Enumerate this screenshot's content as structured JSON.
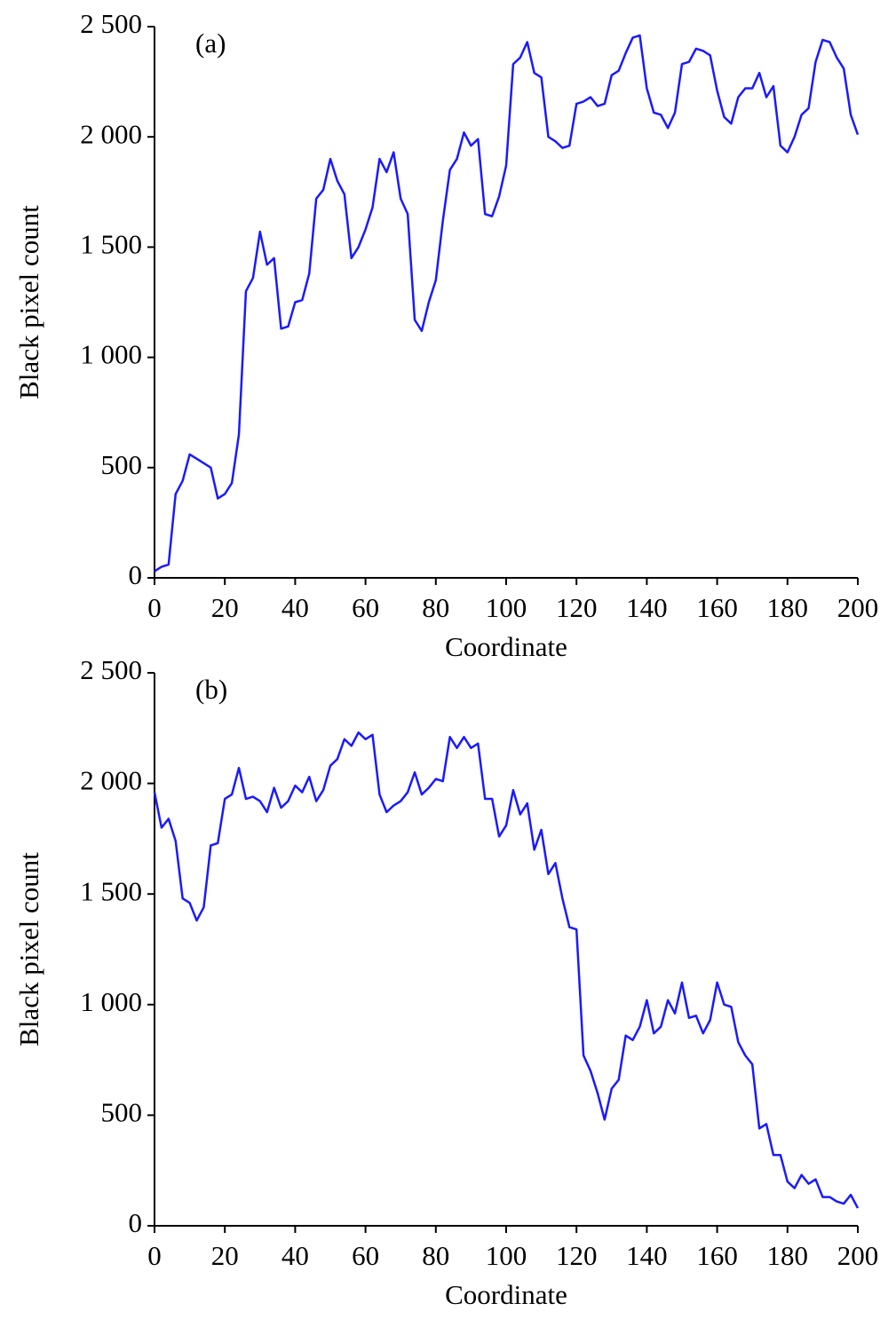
{
  "chart_data": [
    {
      "type": "line",
      "annotation": "(a)",
      "xlabel": "Coordinate",
      "ylabel": "Black pixel count",
      "color": "#1a1aff",
      "x": [
        0,
        2,
        4,
        6,
        8,
        10,
        12,
        14,
        16,
        18,
        20,
        22,
        24,
        26,
        28,
        30,
        32,
        34,
        36,
        38,
        40,
        42,
        44,
        46,
        48,
        50,
        52,
        54,
        56,
        58,
        60,
        62,
        64,
        66,
        68,
        70,
        72,
        74,
        76,
        78,
        80,
        82,
        84,
        86,
        88,
        90,
        92,
        94,
        96,
        98,
        100,
        102,
        104,
        106,
        108,
        110,
        112,
        114,
        116,
        118,
        120,
        122,
        124,
        126,
        128,
        130,
        132,
        134,
        136,
        138,
        140,
        142,
        144,
        146,
        148,
        150,
        152,
        154,
        156,
        158,
        160,
        162,
        164,
        166,
        168,
        170,
        172,
        174,
        176,
        178,
        180,
        182,
        184,
        186,
        188,
        190,
        192,
        194,
        196,
        198,
        200
      ],
      "values": [
        30,
        50,
        60,
        380,
        440,
        560,
        540,
        520,
        500,
        360,
        380,
        430,
        650,
        1300,
        1360,
        1570,
        1420,
        1450,
        1130,
        1140,
        1250,
        1260,
        1380,
        1720,
        1760,
        1900,
        1800,
        1740,
        1450,
        1500,
        1580,
        1680,
        1900,
        1840,
        1930,
        1720,
        1650,
        1170,
        1120,
        1250,
        1350,
        1620,
        1850,
        1900,
        2020,
        1960,
        1990,
        1650,
        1640,
        1730,
        1870,
        2330,
        2360,
        2430,
        2290,
        2270,
        2000,
        1980,
        1950,
        1960,
        2150,
        2160,
        2180,
        2140,
        2150,
        2280,
        2300,
        2380,
        2450,
        2460,
        2220,
        2110,
        2100,
        2040,
        2110,
        2330,
        2340,
        2400,
        2390,
        2370,
        2210,
        2090,
        2060,
        2180,
        2220,
        2220,
        2290,
        2180,
        2230,
        1960,
        1930,
        2000,
        2100,
        2130,
        2340,
        2440,
        2430,
        2360,
        2310,
        2100,
        2010
      ],
      "xlim": [
        0,
        200
      ],
      "xticks": [
        0,
        20,
        40,
        60,
        80,
        100,
        120,
        140,
        160,
        180,
        200
      ],
      "ylim": [
        0,
        2500
      ],
      "yticks": [
        0,
        500,
        {
          "value": 1000,
          "label": "1 000"
        },
        {
          "value": 1500,
          "label": "1 500"
        },
        {
          "value": 2000,
          "label": "2 000"
        },
        {
          "value": 2500,
          "label": "2 500"
        }
      ]
    },
    {
      "type": "line",
      "annotation": "(b)",
      "xlabel": "Coordinate",
      "ylabel": "Black pixel count",
      "color": "#1a1aff",
      "x": [
        0,
        2,
        4,
        6,
        8,
        10,
        12,
        14,
        16,
        18,
        20,
        22,
        24,
        26,
        28,
        30,
        32,
        34,
        36,
        38,
        40,
        42,
        44,
        46,
        48,
        50,
        52,
        54,
        56,
        58,
        60,
        62,
        64,
        66,
        68,
        70,
        72,
        74,
        76,
        78,
        80,
        82,
        84,
        86,
        88,
        90,
        92,
        94,
        96,
        98,
        100,
        102,
        104,
        106,
        108,
        110,
        112,
        114,
        116,
        118,
        120,
        122,
        124,
        126,
        128,
        130,
        132,
        134,
        136,
        138,
        140,
        142,
        144,
        146,
        148,
        150,
        152,
        154,
        156,
        158,
        160,
        162,
        164,
        166,
        168,
        170,
        172,
        174,
        176,
        178,
        180,
        182,
        184,
        186,
        188,
        190,
        192,
        194,
        196,
        198,
        200
      ],
      "values": [
        1960,
        1800,
        1840,
        1740,
        1480,
        1460,
        1380,
        1440,
        1720,
        1730,
        1930,
        1950,
        2070,
        1930,
        1940,
        1920,
        1870,
        1980,
        1890,
        1920,
        1990,
        1960,
        2030,
        1920,
        1970,
        2080,
        2110,
        2200,
        2170,
        2230,
        2200,
        2220,
        1950,
        1870,
        1900,
        1920,
        1960,
        2050,
        1950,
        1980,
        2020,
        2010,
        2210,
        2160,
        2210,
        2160,
        2180,
        1930,
        1930,
        1760,
        1810,
        1970,
        1860,
        1910,
        1700,
        1790,
        1590,
        1640,
        1480,
        1350,
        1340,
        770,
        700,
        600,
        480,
        620,
        660,
        860,
        840,
        900,
        1020,
        870,
        900,
        1020,
        960,
        1100,
        940,
        950,
        870,
        930,
        1100,
        1000,
        990,
        830,
        770,
        730,
        440,
        460,
        320,
        320,
        200,
        170,
        230,
        190,
        210,
        130,
        130,
        110,
        100,
        140,
        80
      ],
      "xlim": [
        0,
        200
      ],
      "xticks": [
        0,
        20,
        40,
        60,
        80,
        100,
        120,
        140,
        160,
        180,
        200
      ],
      "ylim": [
        0,
        2500
      ],
      "yticks": [
        0,
        500,
        {
          "value": 1000,
          "label": "1 000"
        },
        {
          "value": 1500,
          "label": "1 500"
        },
        {
          "value": 2000,
          "label": "2 000"
        },
        {
          "value": 2500,
          "label": "2 500"
        }
      ]
    }
  ]
}
